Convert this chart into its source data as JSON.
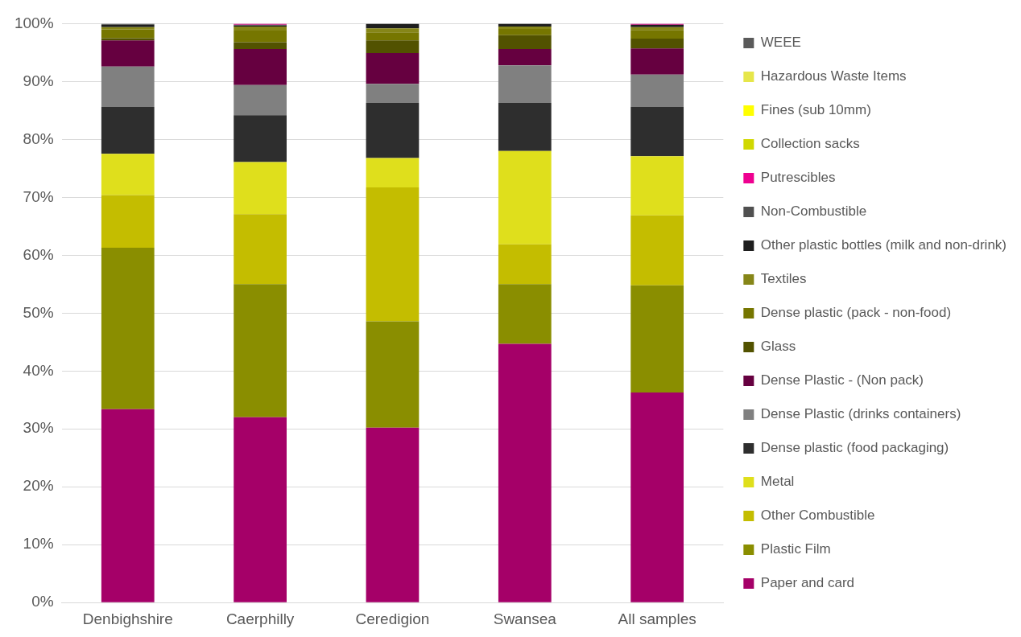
{
  "chart_data": {
    "type": "bar",
    "stacked": true,
    "categories": [
      "Denbighshire",
      "Caerphilly",
      "Ceredigion",
      "Swansea",
      "All samples"
    ],
    "ylim": [
      0,
      100
    ],
    "yticks": [
      {
        "value": 0,
        "label": "0%"
      },
      {
        "value": 10,
        "label": "10%"
      },
      {
        "value": 20,
        "label": "20%"
      },
      {
        "value": 30,
        "label": "30%"
      },
      {
        "value": 40,
        "label": "40%"
      },
      {
        "value": 50,
        "label": "50%"
      },
      {
        "value": 60,
        "label": "60%"
      },
      {
        "value": 70,
        "label": "70%"
      },
      {
        "value": 80,
        "label": "80%"
      },
      {
        "value": 90,
        "label": "90%"
      },
      {
        "value": 100,
        "label": "100%"
      }
    ],
    "grid": "y",
    "legend": "right",
    "series": [
      {
        "name": "Paper and card",
        "color": "#a50068",
        "values": [
          33.4,
          32.0,
          30.2,
          44.7,
          36.3
        ]
      },
      {
        "name": "Plastic Film",
        "color": "#8a8e00",
        "values": [
          27.9,
          23.0,
          18.4,
          10.3,
          18.5
        ]
      },
      {
        "name": "Other Combustible",
        "color": "#c4bd00",
        "values": [
          9.1,
          12.1,
          23.1,
          6.9,
          12.1
        ]
      },
      {
        "name": "Metal",
        "color": "#dfdf1c",
        "values": [
          7.1,
          9.0,
          5.1,
          16.1,
          10.2
        ]
      },
      {
        "name": "Dense plastic (food packaging)",
        "color": "#2e2e2e",
        "values": [
          8.1,
          8.1,
          9.5,
          8.3,
          8.5
        ]
      },
      {
        "name": "Dense Plastic (drinks containers)",
        "color": "#808080",
        "values": [
          7.0,
          5.2,
          3.3,
          6.5,
          5.6
        ]
      },
      {
        "name": "Dense Plastic - (Non pack)",
        "color": "#660040",
        "values": [
          4.5,
          6.2,
          5.3,
          2.8,
          4.5
        ]
      },
      {
        "name": "Glass",
        "color": "#525200",
        "values": [
          0.4,
          1.2,
          2.2,
          2.4,
          1.7
        ]
      },
      {
        "name": "Dense plastic (pack - non-food)",
        "color": "#767600",
        "values": [
          1.5,
          2.0,
          1.4,
          1.1,
          1.5
        ]
      },
      {
        "name": "Textiles",
        "color": "#868618",
        "values": [
          0.4,
          0.7,
          0.7,
          0.4,
          0.5
        ]
      },
      {
        "name": "Other plastic bottles (milk and non-drink)",
        "color": "#1e1e1e",
        "values": [
          0.4,
          0.2,
          0.8,
          0.5,
          0.4
        ]
      },
      {
        "name": "Non-Combustible",
        "color": "#505050",
        "values": [
          0.2,
          0.1,
          0,
          0,
          0
        ]
      },
      {
        "name": "Putrescibles",
        "color": "#ee0090",
        "values": [
          0,
          0.2,
          0,
          0,
          0.2
        ]
      },
      {
        "name": "Collection sacks",
        "color": "#d0d800",
        "values": [
          0,
          0,
          0,
          0,
          0
        ]
      },
      {
        "name": "Fines (sub 10mm)",
        "color": "#ffff00",
        "values": [
          0,
          0,
          0,
          0,
          0
        ]
      },
      {
        "name": "Hazardous Waste Items",
        "color": "#e6e64a",
        "values": [
          0,
          0,
          0,
          0,
          0
        ]
      },
      {
        "name": "WEEE",
        "color": "#5a5a5a",
        "values": [
          0,
          0,
          0,
          0,
          0
        ]
      }
    ]
  }
}
